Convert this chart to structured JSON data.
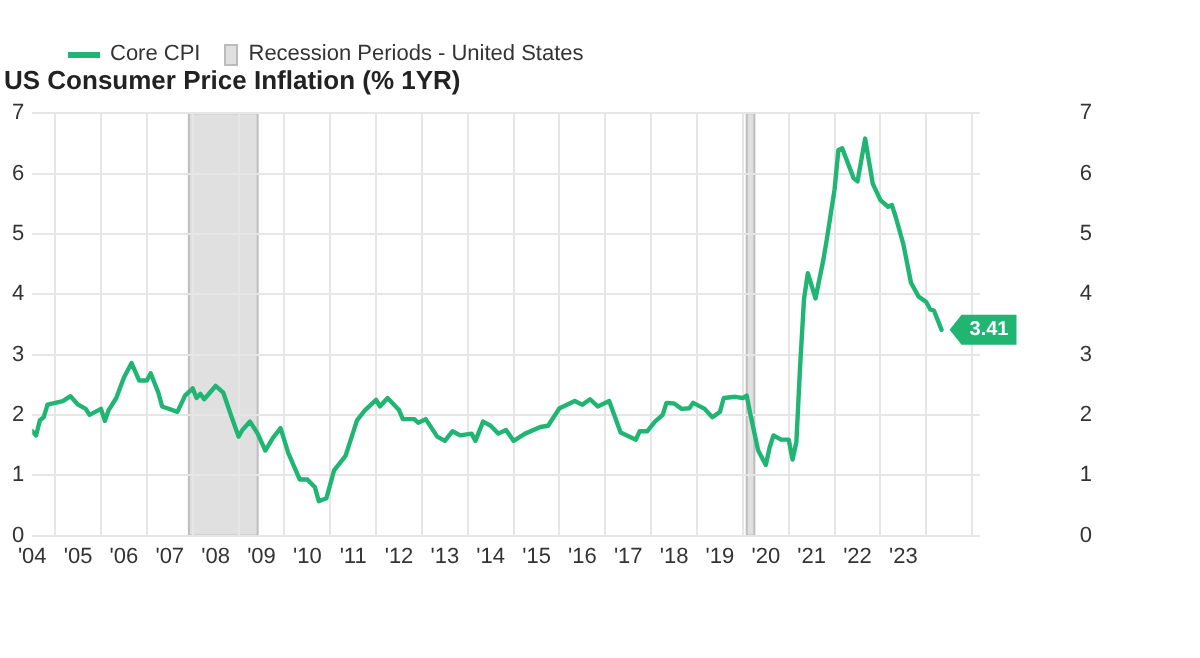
{
  "chart_data": {
    "type": "line",
    "title": "US Consumer Price Inflation (% 1YR)",
    "x": [
      "2004-07",
      "2004-08",
      "2004-09",
      "2004-10",
      "2004-11",
      "2005-03",
      "2005-05",
      "2005-07",
      "2005-09",
      "2005-10",
      "2006-01",
      "2006-02",
      "2006-03",
      "2006-05",
      "2006-07",
      "2006-09",
      "2006-11",
      "2007-01",
      "2007-02",
      "2007-04",
      "2007-05",
      "2007-09",
      "2007-11",
      "2008-01",
      "2008-02",
      "2008-03",
      "2008-04",
      "2008-07",
      "2008-09",
      "2008-11",
      "2009-01",
      "2009-02",
      "2009-04",
      "2009-06",
      "2009-08",
      "2009-10",
      "2009-12",
      "2010-02",
      "2010-05",
      "2010-07",
      "2010-09",
      "2010-10",
      "2010-12",
      "2011-02",
      "2011-05",
      "2011-08",
      "2011-10",
      "2012-01",
      "2012-02",
      "2012-04",
      "2012-07",
      "2012-08",
      "2012-11",
      "2012-12",
      "2013-02",
      "2013-05",
      "2013-07",
      "2013-09",
      "2013-11",
      "2014-02",
      "2014-03",
      "2014-05",
      "2014-07",
      "2014-09",
      "2014-11",
      "2015-01",
      "2015-04",
      "2015-08",
      "2015-10",
      "2016-01",
      "2016-02",
      "2016-05",
      "2016-07",
      "2016-09",
      "2016-11",
      "2017-02",
      "2017-05",
      "2017-09",
      "2017-10",
      "2017-12",
      "2018-02",
      "2018-04",
      "2018-05",
      "2018-07",
      "2018-09",
      "2018-11",
      "2018-12",
      "2019-03",
      "2019-05",
      "2019-07",
      "2019-08",
      "2019-11",
      "2020-01",
      "2020-02",
      "2020-03",
      "2020-05",
      "2020-07",
      "2020-08",
      "2020-09",
      "2020-11",
      "2021-01",
      "2021-02",
      "2021-03",
      "2021-04",
      "2021-05",
      "2021-06",
      "2021-08",
      "2021-10",
      "2021-11",
      "2022-01",
      "2022-02",
      "2022-03",
      "2022-06",
      "2022-07",
      "2022-09",
      "2022-11",
      "2023-01",
      "2023-03",
      "2023-04",
      "2023-05",
      "2023-07",
      "2023-09",
      "2023-11",
      "2024-01",
      "2024-02",
      "2024-03",
      "2024-05"
    ],
    "series": [
      {
        "name": "Core CPI",
        "color": "#21b574",
        "values": [
          1.73,
          1.66,
          1.91,
          1.96,
          2.17,
          2.23,
          2.31,
          2.17,
          2.1,
          2.0,
          2.1,
          1.9,
          2.08,
          2.28,
          2.62,
          2.86,
          2.57,
          2.57,
          2.69,
          2.37,
          2.14,
          2.05,
          2.32,
          2.44,
          2.28,
          2.35,
          2.26,
          2.48,
          2.37,
          2.0,
          1.64,
          1.75,
          1.89,
          1.69,
          1.41,
          1.62,
          1.78,
          1.37,
          0.93,
          0.93,
          0.8,
          0.57,
          0.62,
          1.08,
          1.32,
          1.91,
          2.07,
          2.25,
          2.14,
          2.28,
          2.08,
          1.93,
          1.93,
          1.87,
          1.93,
          1.64,
          1.57,
          1.73,
          1.66,
          1.69,
          1.57,
          1.89,
          1.82,
          1.69,
          1.75,
          1.57,
          1.69,
          1.8,
          1.82,
          2.11,
          2.14,
          2.23,
          2.17,
          2.26,
          2.14,
          2.23,
          1.71,
          1.59,
          1.73,
          1.73,
          1.89,
          2.0,
          2.2,
          2.19,
          2.1,
          2.11,
          2.2,
          2.1,
          1.96,
          2.05,
          2.28,
          2.3,
          2.28,
          2.32,
          2.0,
          1.41,
          1.17,
          1.46,
          1.66,
          1.59,
          1.59,
          1.26,
          1.55,
          2.83,
          3.92,
          4.35,
          3.93,
          4.55,
          4.92,
          5.74,
          6.39,
          6.42,
          5.92,
          5.87,
          6.58,
          5.83,
          5.56,
          5.45,
          5.48,
          5.28,
          4.83,
          4.19,
          3.96,
          3.87,
          3.75,
          3.73,
          3.41
        ]
      }
    ],
    "xlim": [
      "2004-07",
      "2025-03"
    ],
    "xticks": [
      {
        "value": "2004-07",
        "label": "'04"
      },
      {
        "value": "2005-01",
        "label": null
      },
      {
        "value": "2005-07",
        "label": "'05"
      },
      {
        "value": "2006-01",
        "label": null
      },
      {
        "value": "2006-07",
        "label": "'06"
      },
      {
        "value": "2007-01",
        "label": null
      },
      {
        "value": "2007-07",
        "label": "'07"
      },
      {
        "value": "2008-01",
        "label": null
      },
      {
        "value": "2008-07",
        "label": "'08"
      },
      {
        "value": "2009-01",
        "label": null
      },
      {
        "value": "2009-07",
        "label": "'09"
      },
      {
        "value": "2010-01",
        "label": null
      },
      {
        "value": "2010-07",
        "label": "'10"
      },
      {
        "value": "2011-01",
        "label": null
      },
      {
        "value": "2011-07",
        "label": "'11"
      },
      {
        "value": "2012-01",
        "label": null
      },
      {
        "value": "2012-07",
        "label": "'12"
      },
      {
        "value": "2013-01",
        "label": null
      },
      {
        "value": "2013-07",
        "label": "'13"
      },
      {
        "value": "2014-01",
        "label": null
      },
      {
        "value": "2014-07",
        "label": "'14"
      },
      {
        "value": "2015-01",
        "label": null
      },
      {
        "value": "2015-07",
        "label": "'15"
      },
      {
        "value": "2016-01",
        "label": null
      },
      {
        "value": "2016-07",
        "label": "'16"
      },
      {
        "value": "2017-01",
        "label": null
      },
      {
        "value": "2017-07",
        "label": "'17"
      },
      {
        "value": "2018-01",
        "label": null
      },
      {
        "value": "2018-07",
        "label": "'18"
      },
      {
        "value": "2019-01",
        "label": null
      },
      {
        "value": "2019-07",
        "label": "'19"
      },
      {
        "value": "2020-01",
        "label": null
      },
      {
        "value": "2020-07",
        "label": "'20"
      },
      {
        "value": "2021-01",
        "label": null
      },
      {
        "value": "2021-07",
        "label": "'21"
      },
      {
        "value": "2022-01",
        "label": null
      },
      {
        "value": "2022-07",
        "label": "'22"
      },
      {
        "value": "2023-01",
        "label": null
      },
      {
        "value": "2023-07",
        "label": "'23"
      },
      {
        "value": "2024-01",
        "label": null
      },
      {
        "value": "2025-01",
        "label": null
      }
    ],
    "ylim": [
      0,
      7
    ],
    "yticks": [
      0,
      1,
      2,
      3,
      4,
      5,
      6,
      7
    ],
    "y2lim": [
      0,
      7
    ],
    "y2ticks": [
      0,
      1,
      2,
      3,
      4,
      5,
      6,
      7
    ],
    "bands": [
      {
        "axis": "x",
        "from": "2007-12",
        "to": "2009-06",
        "label": "Recession Periods - United States",
        "color": "#e0e0e0"
      },
      {
        "axis": "x",
        "from": "2020-02",
        "to": "2020-04",
        "color": "#e0e0e0"
      }
    ],
    "annotations": [
      {
        "text": "3.41",
        "x": "2024-05",
        "y": 3.41
      }
    ],
    "grid": true,
    "legend": "top left",
    "marker": "none",
    "line_style": "solid"
  }
}
